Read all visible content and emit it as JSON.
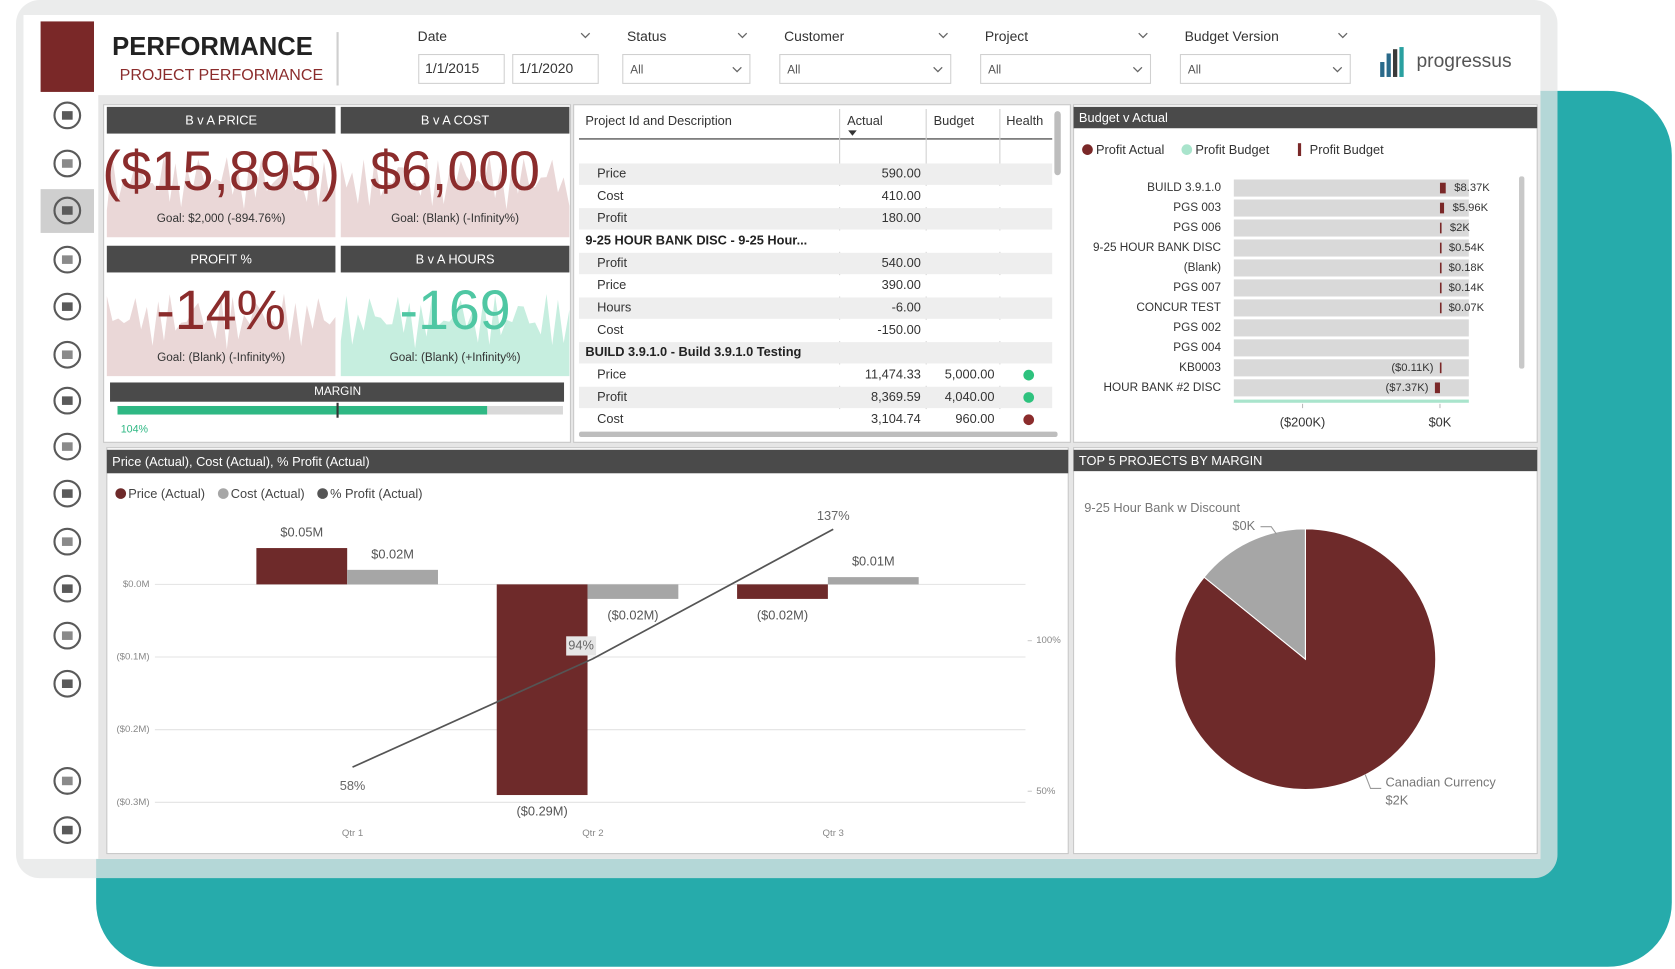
{
  "header": {
    "title": "PERFORMANCE",
    "subtitle": "PROJECT PERFORMANCE"
  },
  "filters": [
    {
      "label": "Date",
      "values": [
        "1/1/2015",
        "1/1/2020"
      ]
    },
    {
      "label": "Status",
      "value": "All"
    },
    {
      "label": "Customer",
      "value": "All"
    },
    {
      "label": "Project",
      "value": "All"
    },
    {
      "label": "Budget Version",
      "value": "All"
    }
  ],
  "logo": "progressus",
  "kpis": [
    {
      "title": "B v A PRICE",
      "value": "($15,895)",
      "goal": "Goal: $2,000 (-894.76%)",
      "color": "#8b2c2c"
    },
    {
      "title": "B v A COST",
      "value": "$6,000",
      "goal": "Goal: (Blank) (-Infinity%)",
      "color": "#8b2c2c"
    },
    {
      "title": "PROFIT %",
      "value": "-14%",
      "goal": "Goal: (Blank) (-Infinity%)",
      "color": "#8b2c2c"
    },
    {
      "title": "B v A HOURS",
      "value": "-169",
      "goal": "Goal: (Blank) (+Infinity%)",
      "color": "#4fc7a3"
    }
  ],
  "margin": {
    "title": "MARGIN",
    "label": "104%"
  },
  "project_table": {
    "columns": [
      "Project Id and Description",
      "Actual",
      "Budget",
      "Health"
    ],
    "rows": [
      {
        "description": "Price",
        "actual": "590.00"
      },
      {
        "description": "Cost",
        "actual": "410.00"
      },
      {
        "description": "Profit",
        "actual": "180.00"
      },
      {
        "group": "9-25 HOUR BANK DISC - 9-25 Hour..."
      },
      {
        "description": "Profit",
        "actual": "540.00"
      },
      {
        "description": "Price",
        "actual": "390.00"
      },
      {
        "description": "Hours",
        "actual": "-6.00"
      },
      {
        "description": "Cost",
        "actual": "-150.00"
      },
      {
        "group": "BUILD 3.9.1.0 - Build 3.9.1.0 Testing"
      },
      {
        "description": "Price",
        "actual": "11,474.33",
        "budget": "5,000.00",
        "health": "#2ec27e"
      },
      {
        "description": "Profit",
        "actual": "8,369.59",
        "budget": "4,040.00",
        "health": "#2ec27e"
      },
      {
        "description": "Cost",
        "actual": "3,104.74",
        "budget": "960.00",
        "health": "#8b2c2c"
      }
    ]
  },
  "chart_data": [
    {
      "type": "hbar",
      "title": "Budget v Actual",
      "legend": [
        {
          "name": "Profit Actual",
          "color": "#7a2828",
          "marker": "circle"
        },
        {
          "name": "Profit Budget",
          "color": "#a9e4cc",
          "marker": "circle"
        },
        {
          "name": "Profit Budget",
          "color": "#7a2828",
          "marker": "bar"
        }
      ],
      "categories": [
        "BUILD 3.9.1.0",
        "PGS 003",
        "PGS 006",
        "9-25 HOUR BANK DISC",
        "(Blank)",
        "PGS 007",
        "CONCUR TEST",
        "PGS 002",
        "PGS 004",
        "KB0003",
        "HOUR BANK #2 DISC"
      ],
      "values": [
        8.37,
        5.96,
        2,
        0.54,
        0.18,
        0.14,
        0.07,
        null,
        null,
        -0.11,
        -7.37
      ],
      "value_labels": [
        "$8.37K",
        "$5.96K",
        "$2K",
        "$0.54K",
        "$0.18K",
        "$0.14K",
        "$0.07K",
        null,
        null,
        "($0.11K)",
        "($7.37K)"
      ],
      "color": "#7a2828",
      "xlim": [
        -300,
        42
      ],
      "xticks": [
        {
          "value": -200,
          "label": "($200K)"
        },
        {
          "value": 0,
          "label": "$0K"
        }
      ]
    },
    {
      "type": "combo",
      "title": "Price (Actual), Cost (Actual), % Profit (Actual)",
      "categories": [
        "Qtr 1",
        "Qtr 2",
        "Qtr 3"
      ],
      "series": [
        {
          "name": "Price (Actual)",
          "color": "#6e2a2a",
          "values": [
            0.05,
            -0.29,
            -0.02
          ],
          "value_labels": [
            "$0.05M",
            "($0.29M)",
            "($0.02M)"
          ]
        },
        {
          "name": "Cost (Actual)",
          "color": "#a6a6a6",
          "values": [
            0.02,
            -0.02,
            0.01
          ],
          "value_labels": [
            "$0.02M",
            "($0.02M)",
            "$0.01M"
          ]
        },
        {
          "name": "% Profit (Actual)",
          "color": "#555555",
          "axis": "y2",
          "values": [
            58,
            94,
            137
          ],
          "value_labels": [
            "58%",
            "94%",
            "137%"
          ]
        }
      ],
      "ylim": [
        -0.32,
        0.08
      ],
      "yticks": [
        {
          "value": 0,
          "label": "$0.0M"
        },
        {
          "value": -0.1,
          "label": "($0.1M)"
        },
        {
          "value": -0.2,
          "label": "($0.2M)"
        },
        {
          "value": -0.3,
          "label": "($0.3M)"
        }
      ],
      "y2lim": [
        41.5,
        138
      ],
      "y2ticks": [
        {
          "value": 50,
          "label": "50%"
        },
        {
          "value": 100,
          "label": "100%"
        }
      ],
      "grid": true
    },
    {
      "type": "pie",
      "title": "TOP 5 PROJECTS BY MARGIN",
      "categories": [
        "Canadian Currency",
        "9-25 Hour Bank w Discount"
      ],
      "values": [
        2,
        0.33
      ],
      "value_labels": [
        "$2K",
        "$0K"
      ],
      "colors": [
        "#6e2a2a",
        "#a6a6a6"
      ]
    }
  ]
}
